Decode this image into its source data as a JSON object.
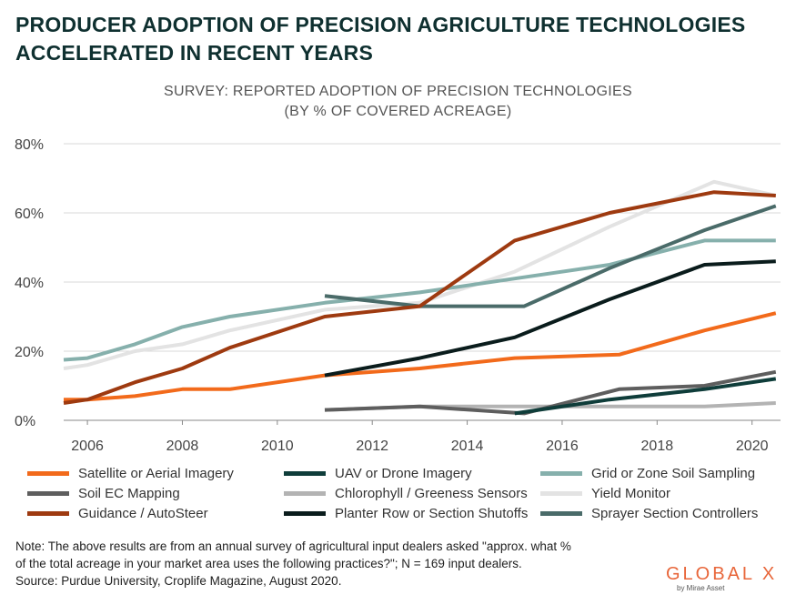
{
  "title_line1": "PRODUCER ADOPTION OF PRECISION AGRICULTURE TECHNOLOGIES",
  "title_line2": "ACCELERATED IN RECENT YEARS",
  "note": {
    "line1": "Note: The above results are from an annual survey of agricultural input dealers asked \"approx. what %",
    "line2": "of the total acreage in your market area uses the following practices?\"; N = 169 input dealers.",
    "line3": "Source: Purdue University, Croplife Magazine, August 2020."
  },
  "logo": {
    "text": "GLOBAL X",
    "sub": "by Mirae Asset"
  },
  "chart_data": {
    "type": "line",
    "title": "SURVEY: REPORTED ADOPTION OF PRECISION TECHNOLOGIES",
    "subtitle": "(BY % OF COVERED ACREAGE)",
    "xlabel": "",
    "ylabel": "",
    "xlim": [
      2005.5,
      2020.6
    ],
    "ylim": [
      0,
      80
    ],
    "x_ticks": [
      2006,
      2008,
      2010,
      2012,
      2014,
      2016,
      2018,
      2020
    ],
    "y_ticks": [
      0,
      20,
      40,
      60,
      80
    ],
    "y_tick_labels": [
      "0%",
      "20%",
      "40%",
      "60%",
      "80%"
    ],
    "grid": "horizontal",
    "legend_position": "bottom",
    "series": [
      {
        "name": "Yield Monitor",
        "color": "#e3e3e3",
        "points": [
          [
            2005.5,
            15
          ],
          [
            2006,
            16
          ],
          [
            2007,
            20
          ],
          [
            2008,
            22
          ],
          [
            2009,
            26
          ],
          [
            2011,
            32
          ],
          [
            2013,
            34
          ],
          [
            2015,
            43
          ],
          [
            2017,
            56
          ],
          [
            2019.2,
            69
          ],
          [
            2020.5,
            65
          ]
        ]
      },
      {
        "name": "Chlorophyll / Greeness Sensors",
        "color": "#b3b3b3",
        "points": [
          [
            2011,
            3
          ],
          [
            2013,
            4
          ],
          [
            2015,
            4
          ],
          [
            2017,
            4
          ],
          [
            2019,
            4
          ],
          [
            2020.5,
            5
          ]
        ]
      },
      {
        "name": "Soil EC Mapping",
        "color": "#5e5e5e",
        "points": [
          [
            2011,
            3
          ],
          [
            2013,
            4
          ],
          [
            2015.2,
            2
          ],
          [
            2017.2,
            9
          ],
          [
            2019,
            10
          ],
          [
            2020.5,
            14
          ]
        ]
      },
      {
        "name": "UAV or Drone Imagery",
        "color": "#0f3d3a",
        "points": [
          [
            2015,
            2
          ],
          [
            2017,
            6
          ],
          [
            2019,
            9
          ],
          [
            2020.5,
            12
          ]
        ]
      },
      {
        "name": "Satellite or Aerial Imagery",
        "color": "#f26a1b",
        "points": [
          [
            2005.5,
            6
          ],
          [
            2006,
            6
          ],
          [
            2007,
            7
          ],
          [
            2008,
            9
          ],
          [
            2009,
            9
          ],
          [
            2011,
            13
          ],
          [
            2013,
            15
          ],
          [
            2015,
            18
          ],
          [
            2017.2,
            19
          ],
          [
            2019,
            26
          ],
          [
            2020.5,
            31
          ]
        ]
      },
      {
        "name": "Grid or Zone Soil Sampling",
        "color": "#86b0ac",
        "points": [
          [
            2005.5,
            17.5
          ],
          [
            2006,
            18
          ],
          [
            2007,
            22
          ],
          [
            2008,
            27
          ],
          [
            2009,
            30
          ],
          [
            2011,
            34
          ],
          [
            2013,
            37
          ],
          [
            2015,
            41
          ],
          [
            2017,
            45
          ],
          [
            2019,
            52
          ],
          [
            2020.5,
            52
          ]
        ]
      },
      {
        "name": "Planter Row or Section Shutoffs",
        "color": "#0a1c1c",
        "points": [
          [
            2011,
            13
          ],
          [
            2013,
            18
          ],
          [
            2015,
            24
          ],
          [
            2017,
            35
          ],
          [
            2019,
            45
          ],
          [
            2020.5,
            46
          ]
        ]
      },
      {
        "name": "Sprayer Section Controllers",
        "color": "#4a6b69",
        "points": [
          [
            2011,
            36
          ],
          [
            2013,
            33
          ],
          [
            2015.2,
            33
          ],
          [
            2017,
            44
          ],
          [
            2019,
            55
          ],
          [
            2020.5,
            62
          ]
        ]
      },
      {
        "name": "Guidance / AutoSteer",
        "color": "#9e3a10",
        "points": [
          [
            2005.5,
            5
          ],
          [
            2006,
            6
          ],
          [
            2007,
            11
          ],
          [
            2008,
            15
          ],
          [
            2009,
            21
          ],
          [
            2011,
            30
          ],
          [
            2013,
            33
          ],
          [
            2015,
            52
          ],
          [
            2017,
            60
          ],
          [
            2019.2,
            66
          ],
          [
            2020.5,
            65
          ]
        ]
      }
    ],
    "legend": [
      {
        "name": "Satellite or Aerial Imagery",
        "color": "#f26a1b"
      },
      {
        "name": "UAV or Drone Imagery",
        "color": "#0f3d3a"
      },
      {
        "name": "Grid or Zone Soil Sampling",
        "color": "#86b0ac"
      },
      {
        "name": "Soil EC Mapping",
        "color": "#5e5e5e"
      },
      {
        "name": "Chlorophyll / Greeness Sensors",
        "color": "#b3b3b3"
      },
      {
        "name": "Yield Monitor",
        "color": "#e3e3e3"
      },
      {
        "name": "Guidance / AutoSteer",
        "color": "#9e3a10"
      },
      {
        "name": "Planter Row or Section Shutoffs",
        "color": "#0a1c1c"
      },
      {
        "name": "Sprayer Section Controllers",
        "color": "#4a6b69"
      }
    ]
  }
}
